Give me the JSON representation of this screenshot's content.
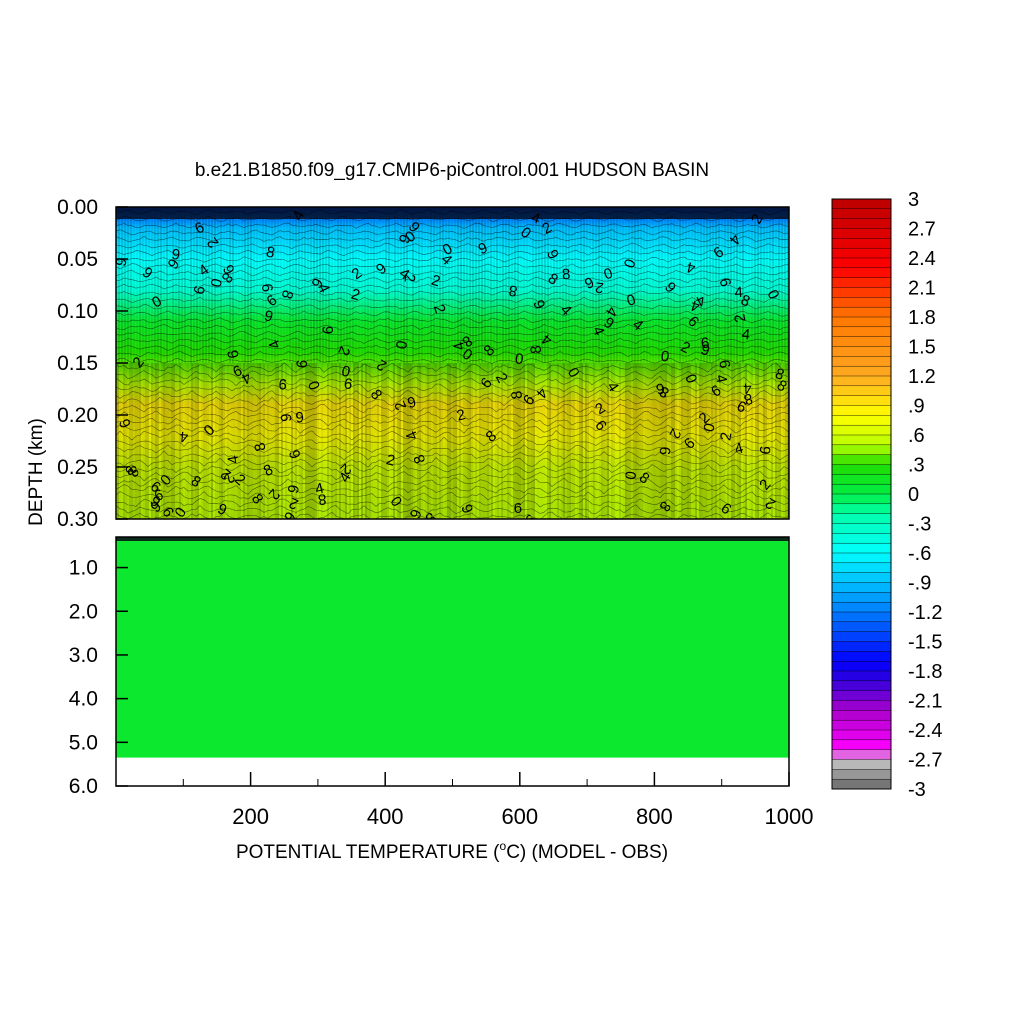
{
  "chart_data": {
    "type": "heatmap",
    "title": "b.e21.B1850.f09_g17.CMIP6-piControl.001 HUDSON BASIN",
    "xlabel": "POTENTIAL TEMPERATURE (",
    "xlabel_unit": "o",
    "xlabel_rest": "C) (MODEL - OBS)",
    "ylabel": "DEPTH (km)",
    "xlim": [
      0,
      1000
    ],
    "x_ticks": [
      "200",
      "400",
      "600",
      "800",
      "1000"
    ],
    "x_tick_values": [
      200,
      400,
      600,
      800,
      1000
    ],
    "upper_panel": {
      "ylim": [
        0.0,
        0.3
      ],
      "y_ticks": [
        "0.00",
        "0.05",
        "0.10",
        "0.15",
        "0.20",
        "0.25",
        "0.30"
      ],
      "y_tick_values": [
        0.0,
        0.05,
        0.1,
        0.15,
        0.2,
        0.25,
        0.3
      ],
      "depth_profile": [
        {
          "depth": 0.0,
          "value": -1.5
        },
        {
          "depth": 0.02,
          "value": -0.9
        },
        {
          "depth": 0.05,
          "value": -0.6
        },
        {
          "depth": 0.08,
          "value": -0.4
        },
        {
          "depth": 0.11,
          "value": 0.1
        },
        {
          "depth": 0.14,
          "value": 0.3
        },
        {
          "depth": 0.17,
          "value": 0.5
        },
        {
          "depth": 0.19,
          "value": 0.9
        },
        {
          "depth": 0.22,
          "value": 0.8
        },
        {
          "depth": 0.25,
          "value": 0.6
        },
        {
          "depth": 0.3,
          "value": 0.5
        }
      ]
    },
    "lower_panel": {
      "ylim": [
        0.3,
        6.0
      ],
      "y_ticks": [
        "1.0",
        "2.0",
        "3.0",
        "4.0",
        "5.0",
        "6.0"
      ],
      "y_tick_values": [
        1.0,
        2.0,
        3.0,
        4.0,
        5.0,
        6.0
      ],
      "fill_value": 0.1,
      "data_bottom_depth": 5.35
    },
    "contour_labels": [
      "0",
      "2",
      "4",
      "6",
      "8",
      "9"
    ],
    "colorbar": {
      "min": -3,
      "max": 3,
      "step": 0.1,
      "labels": [
        "3",
        "2.7",
        "2.4",
        "2.1",
        "1.8",
        "1.5",
        "1.2",
        ".9",
        ".6",
        ".3",
        "0",
        "-.3",
        "-.6",
        "-.9",
        "-1.2",
        "-1.5",
        "-1.8",
        "-2.1",
        "-2.4",
        "-2.7",
        "-3"
      ],
      "label_values": [
        3,
        2.7,
        2.4,
        2.1,
        1.8,
        1.5,
        1.2,
        0.9,
        0.6,
        0.3,
        0,
        -0.3,
        -0.6,
        -0.9,
        -1.2,
        -1.5,
        -1.8,
        -2.1,
        -2.4,
        -2.7,
        -3
      ],
      "color_stops": [
        {
          "v": -3.0,
          "c": "#666666"
        },
        {
          "v": -2.7,
          "c": "#c8c8c8"
        },
        {
          "v": -2.6,
          "c": "#ff00ff"
        },
        {
          "v": -2.2,
          "c": "#aa00cc"
        },
        {
          "v": -1.9,
          "c": "#3300dd"
        },
        {
          "v": -1.7,
          "c": "#0000ff"
        },
        {
          "v": -1.3,
          "c": "#0066ff"
        },
        {
          "v": -1.0,
          "c": "#00aaff"
        },
        {
          "v": -0.6,
          "c": "#00ffff"
        },
        {
          "v": -0.2,
          "c": "#00ffaa"
        },
        {
          "v": 0.0,
          "c": "#00ee44"
        },
        {
          "v": 0.3,
          "c": "#22dd00"
        },
        {
          "v": 0.5,
          "c": "#bbff00"
        },
        {
          "v": 0.8,
          "c": "#ffff00"
        },
        {
          "v": 1.2,
          "c": "#ffaa22"
        },
        {
          "v": 1.8,
          "c": "#ff7700"
        },
        {
          "v": 2.3,
          "c": "#ff0000"
        },
        {
          "v": 3.0,
          "c": "#bb0000"
        }
      ]
    }
  }
}
